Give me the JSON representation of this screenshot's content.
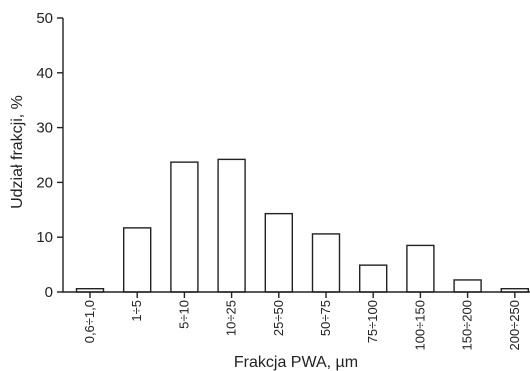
{
  "chart_data": {
    "type": "bar",
    "title": "",
    "xlabel": "Frakcja PWA, µm",
    "ylabel": "Udział frakcji, %",
    "ylim": [
      0,
      50
    ],
    "yticks": [
      0,
      10,
      20,
      30,
      40,
      50
    ],
    "grid": false,
    "categories": [
      "0,6÷1,0",
      "1÷5",
      "5÷10",
      "10÷25",
      "25÷50",
      "50÷75",
      "75÷100",
      "100÷150",
      "150÷200",
      "200÷250"
    ],
    "values": [
      0.6,
      11.7,
      23.7,
      24.2,
      14.3,
      10.6,
      4.9,
      8.5,
      2.2,
      0.6
    ]
  }
}
